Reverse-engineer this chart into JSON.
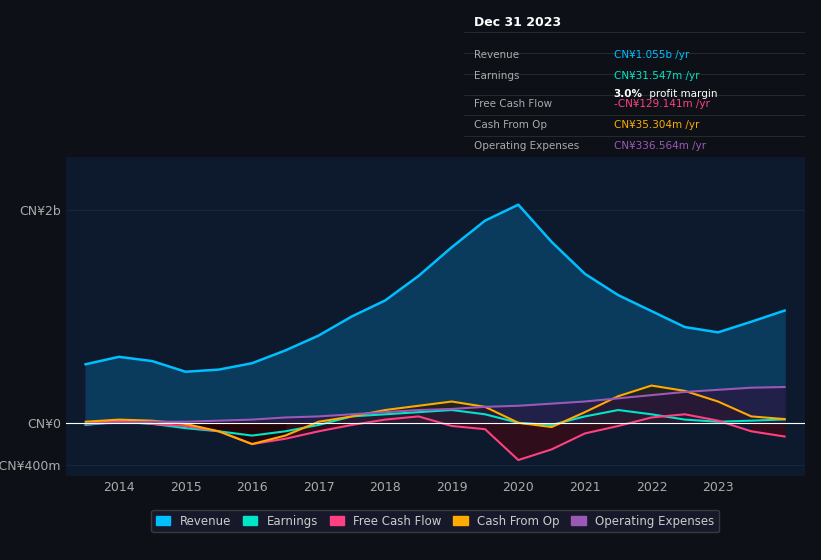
{
  "bg_color": "#0d1117",
  "plot_bg_color": "#0d1a2e",
  "grid_color": "#1e3050",
  "zero_line_color": "#ffffff",
  "years": [
    2013.5,
    2014.0,
    2014.5,
    2015.0,
    2015.5,
    2016.0,
    2016.5,
    2017.0,
    2017.5,
    2018.0,
    2018.5,
    2019.0,
    2019.5,
    2020.0,
    2020.5,
    2021.0,
    2021.5,
    2022.0,
    2022.5,
    2023.0,
    2023.5,
    2024.0
  ],
  "revenue": [
    550,
    620,
    580,
    480,
    500,
    560,
    680,
    820,
    1000,
    1150,
    1380,
    1650,
    1900,
    2050,
    1700,
    1400,
    1200,
    1050,
    900,
    850,
    950,
    1055
  ],
  "earnings": [
    -20,
    10,
    -10,
    -50,
    -80,
    -120,
    -80,
    -20,
    60,
    80,
    100,
    120,
    80,
    0,
    -20,
    60,
    120,
    80,
    30,
    10,
    20,
    31.5
  ],
  "free_cash_flow": [
    -10,
    20,
    -10,
    -30,
    -80,
    -200,
    -150,
    -80,
    -20,
    30,
    60,
    -30,
    -60,
    -350,
    -250,
    -100,
    -30,
    50,
    80,
    20,
    -80,
    -129
  ],
  "cash_from_op": [
    10,
    30,
    20,
    -10,
    -80,
    -200,
    -120,
    10,
    60,
    120,
    160,
    200,
    150,
    0,
    -40,
    100,
    250,
    350,
    300,
    200,
    60,
    35
  ],
  "op_expenses": [
    -10,
    0,
    10,
    10,
    20,
    30,
    50,
    60,
    80,
    100,
    120,
    130,
    150,
    160,
    180,
    200,
    230,
    260,
    290,
    310,
    330,
    336
  ],
  "revenue_color": "#00bfff",
  "earnings_color": "#00e5c8",
  "free_cash_flow_color": "#ff4081",
  "cash_from_op_color": "#ffaa00",
  "op_expenses_color": "#9b59b6",
  "revenue_fill_color": "#0a3a5c",
  "ylim_min": -500,
  "ylim_max": 2500,
  "yticks": [
    -400,
    0,
    2000
  ],
  "ytick_labels": [
    "-CN¥400m",
    "CN¥0",
    "CN¥2b"
  ],
  "xlabel_years": [
    2014,
    2015,
    2016,
    2017,
    2018,
    2019,
    2020,
    2021,
    2022,
    2023
  ],
  "info_box_title": "Dec 31 2023",
  "legend_items": [
    {
      "label": "Revenue",
      "color": "#00bfff"
    },
    {
      "label": "Earnings",
      "color": "#00e5c8"
    },
    {
      "label": "Free Cash Flow",
      "color": "#ff4081"
    },
    {
      "label": "Cash From Op",
      "color": "#ffaa00"
    },
    {
      "label": "Operating Expenses",
      "color": "#9b59b6"
    }
  ]
}
